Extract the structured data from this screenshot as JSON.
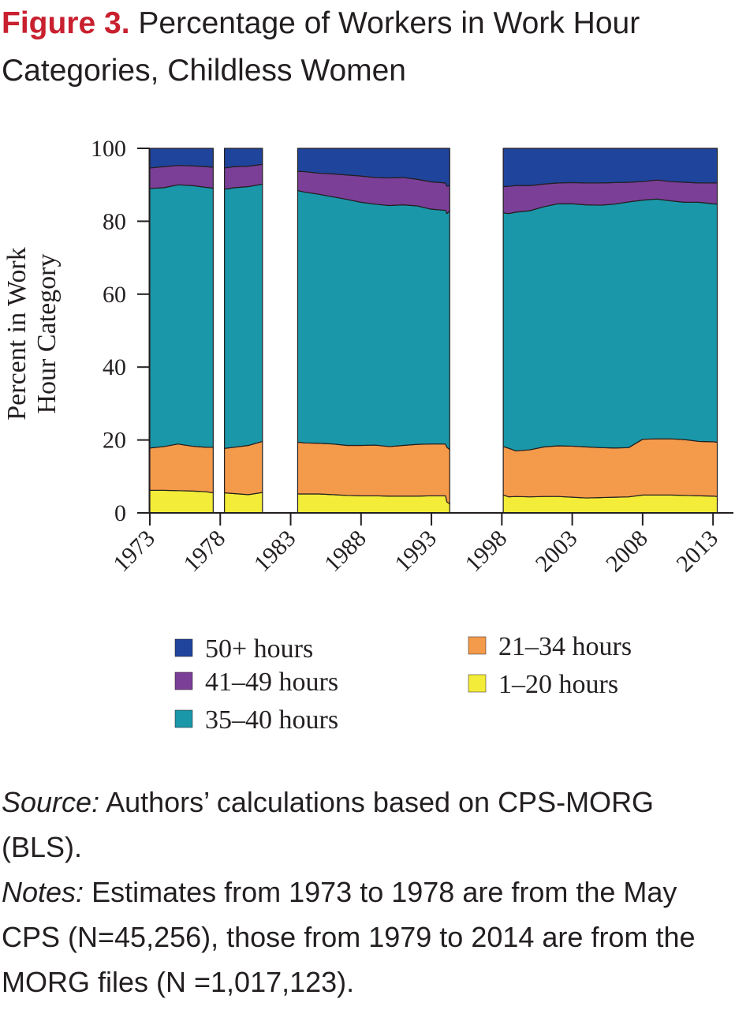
{
  "figure": {
    "label": "Figure 3.",
    "title": "Percentage of Workers in Work Hour Categories, Childless Women"
  },
  "notes": {
    "source_label": "Source:",
    "source_text": "Authors’ calculations based on CPS-MORG (BLS).",
    "notes_label": "Notes:",
    "notes_text": "Estimates from 1973 to 1978 are from the May CPS (N=45,256), those from 1979 to 2014 are from the MORG files (N =1,017,123)."
  },
  "chart_data": {
    "type": "area",
    "stacked": true,
    "title": "",
    "xlabel": "",
    "ylabel": "Percent in Work Hour Category",
    "xlim": [
      1973,
      2014
    ],
    "ylim": [
      0,
      100
    ],
    "xticks": [
      1973,
      1978,
      1983,
      1988,
      1993,
      1998,
      2003,
      2008,
      2013
    ],
    "yticks": [
      0,
      20,
      40,
      60,
      80,
      100
    ],
    "grid": false,
    "legend_position": "bottom",
    "segments": [
      {
        "x": [
          1973,
          1974,
          1975,
          1976,
          1977,
          1977.5
        ],
        "series": [
          {
            "name": "1–20 hours",
            "values": [
              6.2,
              6.2,
              6.1,
              6.0,
              5.8,
              5.5
            ]
          },
          {
            "name": "21–34 hours",
            "values": [
              11.6,
              12.0,
              12.8,
              12.3,
              12.2,
              12.5
            ]
          },
          {
            "name": "35–40 hours",
            "values": [
              71.2,
              71.0,
              71.1,
              71.5,
              71.3,
              71.1
            ]
          },
          {
            "name": "41–49 hours",
            "values": [
              5.6,
              5.8,
              5.3,
              5.4,
              5.7,
              5.7
            ]
          },
          {
            "name": "50+ hours",
            "values": [
              5.4,
              5.0,
              4.7,
              4.8,
              5.0,
              5.2
            ]
          }
        ]
      },
      {
        "x": [
          1978.3,
          1979,
          1980,
          1981
        ],
        "series": [
          {
            "name": "1–20 hours",
            "values": [
              5.5,
              5.3,
              5.0,
              5.6
            ]
          },
          {
            "name": "21–34 hours",
            "values": [
              12.2,
              12.7,
              13.5,
              14.0
            ]
          },
          {
            "name": "35–40 hours",
            "values": [
              71.1,
              71.2,
              71.0,
              70.6
            ]
          },
          {
            "name": "41–49 hours",
            "values": [
              5.8,
              5.8,
              5.6,
              5.4
            ]
          },
          {
            "name": "50+ hours",
            "values": [
              5.4,
              5.0,
              4.9,
              4.4
            ]
          }
        ]
      },
      {
        "x": [
          1983.5,
          1984,
          1985,
          1986,
          1987,
          1988,
          1989,
          1990,
          1991,
          1992,
          1993,
          1994,
          1994.1,
          1994.3
        ],
        "series": [
          {
            "name": "1–20 hours",
            "values": [
              5.2,
              5.2,
              5.2,
              5.0,
              4.8,
              4.7,
              4.7,
              4.6,
              4.6,
              4.6,
              4.7,
              4.7,
              3.0,
              2.5
            ]
          },
          {
            "name": "21–34 hours",
            "values": [
              14.2,
              14.0,
              13.9,
              13.9,
              13.7,
              13.8,
              13.9,
              13.6,
              13.9,
              14.2,
              14.2,
              14.2,
              15.0,
              14.9
            ]
          },
          {
            "name": "35–40 hours",
            "values": [
              69.0,
              68.8,
              68.3,
              67.8,
              67.5,
              66.7,
              66.1,
              66.1,
              66.0,
              65.4,
              64.4,
              64.1,
              64.1,
              65.4
            ]
          },
          {
            "name": "41–49 hours",
            "values": [
              5.3,
              5.6,
              5.8,
              6.3,
              6.7,
              7.2,
              7.3,
              7.6,
              7.5,
              7.3,
              7.5,
              7.5,
              7.5,
              7.0
            ]
          },
          {
            "name": "50+ hours",
            "values": [
              6.3,
              6.4,
              6.8,
              7.0,
              7.3,
              7.6,
              8.0,
              8.1,
              8.0,
              8.5,
              9.2,
              9.5,
              10.4,
              10.2
            ]
          }
        ]
      },
      {
        "x": [
          1998.1,
          1998.5,
          1999,
          2000,
          2001,
          2002,
          2003,
          2004,
          2005,
          2006,
          2007,
          2008,
          2009,
          2010,
          2011,
          2012,
          2013,
          2013.3
        ],
        "series": [
          {
            "name": "1–20 hours",
            "values": [
              4.9,
              4.4,
              4.5,
              4.4,
              4.5,
              4.5,
              4.3,
              4.1,
              4.2,
              4.3,
              4.4,
              4.9,
              4.9,
              4.9,
              4.8,
              4.7,
              4.6,
              4.5
            ]
          },
          {
            "name": "21–34 hours",
            "values": [
              13.3,
              13.3,
              12.5,
              12.9,
              13.6,
              13.9,
              14.0,
              14.0,
              13.7,
              13.5,
              13.5,
              15.3,
              15.4,
              15.4,
              15.3,
              14.9,
              14.9,
              14.9
            ]
          },
          {
            "name": "35–40 hours",
            "values": [
              64.1,
              64.4,
              65.5,
              65.6,
              65.9,
              66.4,
              66.5,
              66.4,
              66.5,
              66.9,
              67.4,
              65.6,
              65.8,
              65.3,
              65.1,
              65.6,
              65.3,
              65.3
            ]
          },
          {
            "name": "41–49 hours",
            "values": [
              7.2,
              7.5,
              7.3,
              6.9,
              6.2,
              5.7,
              5.8,
              6.0,
              6.1,
              5.9,
              5.4,
              5.1,
              5.2,
              5.3,
              5.5,
              5.3,
              5.7,
              5.8
            ]
          },
          {
            "name": "50+ hours",
            "values": [
              10.5,
              10.4,
              10.2,
              10.2,
              9.8,
              9.5,
              9.4,
              9.5,
              9.5,
              9.4,
              9.3,
              9.1,
              8.7,
              9.1,
              9.3,
              9.5,
              9.5,
              9.5
            ]
          }
        ]
      }
    ],
    "legend": [
      {
        "name": "50+ hours",
        "color": "#1f449c"
      },
      {
        "name": "41–49 hours",
        "color": "#7b3f98"
      },
      {
        "name": "35–40 hours",
        "color": "#1a97a9"
      },
      {
        "name": "21–34 hours",
        "color": "#f49a4b"
      },
      {
        "name": "1–20 hours",
        "color": "#f3ec38"
      }
    ],
    "colors": {
      "1–20 hours": "#f3ec38",
      "21–34 hours": "#f49a4b",
      "35–40 hours": "#1a97a9",
      "41–49 hours": "#7b3f98",
      "50+ hours": "#1f449c"
    }
  }
}
